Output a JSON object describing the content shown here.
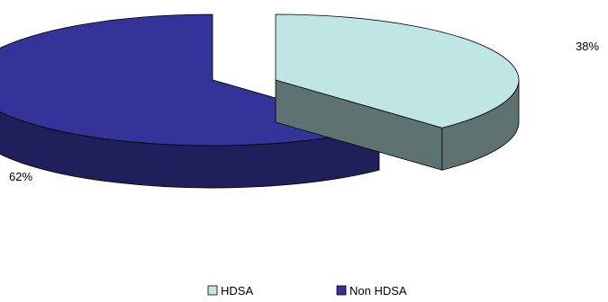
{
  "chart_data": {
    "type": "pie",
    "style": "3d-exploded",
    "categories": [
      "HDSA",
      "Non HDSA"
    ],
    "values": [
      38,
      62
    ],
    "data_labels": [
      "38%",
      "62%"
    ],
    "colors": {
      "HDSA": {
        "top": "#bfe5e5",
        "side": "#5f7272"
      },
      "Non HDSA": {
        "top": "#33339a",
        "side": "#1f1f5c"
      }
    },
    "legend_position": "bottom",
    "title": ""
  }
}
